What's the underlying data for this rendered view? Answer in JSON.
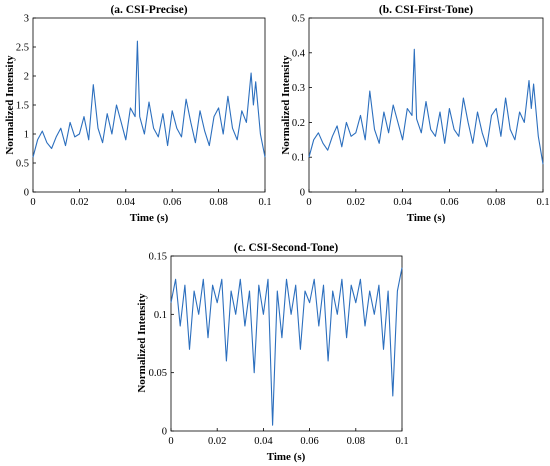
{
  "chart_data": [
    {
      "type": "line",
      "title": "(a. CSI-Precise)",
      "xlabel": "Time (s)",
      "ylabel": "Normalized Intensity",
      "xlim": [
        0,
        0.1
      ],
      "ylim": [
        0,
        3
      ],
      "xticks": [
        "0",
        "0.02",
        "0.04",
        "0.06",
        "0.08",
        "0.1"
      ],
      "yticks": [
        "0",
        "0.5",
        "1",
        "1.5",
        "2",
        "2.5",
        "3"
      ],
      "color": "#2c6fbe",
      "series": [
        {
          "x": [
            0,
            0.002,
            0.004,
            0.006,
            0.008,
            0.01,
            0.012,
            0.014,
            0.016,
            0.018,
            0.02,
            0.022,
            0.024,
            0.026,
            0.028,
            0.03,
            0.032,
            0.034,
            0.036,
            0.038,
            0.04,
            0.042,
            0.044,
            0.045,
            0.046,
            0.048,
            0.05,
            0.052,
            0.054,
            0.056,
            0.058,
            0.06,
            0.062,
            0.064,
            0.066,
            0.068,
            0.07,
            0.072,
            0.074,
            0.076,
            0.078,
            0.08,
            0.082,
            0.084,
            0.086,
            0.088,
            0.09,
            0.092,
            0.094,
            0.095,
            0.096,
            0.098,
            0.1
          ],
          "values": [
            0.6,
            0.9,
            1.05,
            0.85,
            0.75,
            0.95,
            1.1,
            0.8,
            1.2,
            0.95,
            1.0,
            1.3,
            0.9,
            1.85,
            1.1,
            0.85,
            1.35,
            1.0,
            1.5,
            1.2,
            0.9,
            1.45,
            1.3,
            2.6,
            1.3,
            1.0,
            1.55,
            1.1,
            0.95,
            1.35,
            0.8,
            1.4,
            1.1,
            0.95,
            1.6,
            1.2,
            0.85,
            1.4,
            1.05,
            0.8,
            1.3,
            1.45,
            1.0,
            1.65,
            1.1,
            0.9,
            1.4,
            1.2,
            2.05,
            1.5,
            1.9,
            1.0,
            0.6
          ]
        }
      ]
    },
    {
      "type": "line",
      "title": "(b. CSI-First-Tone)",
      "xlabel": "Time (s)",
      "ylabel": "Normalized Intensity",
      "xlim": [
        0,
        0.1
      ],
      "ylim": [
        0,
        0.5
      ],
      "xticks": [
        "0",
        "0.02",
        "0.04",
        "0.06",
        "0.08",
        "0.1"
      ],
      "yticks": [
        "0",
        "0.1",
        "0.2",
        "0.3",
        "0.4",
        "0.5"
      ],
      "color": "#2c6fbe",
      "series": [
        {
          "x": [
            0,
            0.002,
            0.004,
            0.006,
            0.008,
            0.01,
            0.012,
            0.014,
            0.016,
            0.018,
            0.02,
            0.022,
            0.024,
            0.026,
            0.028,
            0.03,
            0.032,
            0.034,
            0.036,
            0.038,
            0.04,
            0.042,
            0.044,
            0.045,
            0.046,
            0.048,
            0.05,
            0.052,
            0.054,
            0.056,
            0.058,
            0.06,
            0.062,
            0.064,
            0.066,
            0.068,
            0.07,
            0.072,
            0.074,
            0.076,
            0.078,
            0.08,
            0.082,
            0.084,
            0.086,
            0.088,
            0.09,
            0.092,
            0.094,
            0.095,
            0.096,
            0.098,
            0.1
          ],
          "values": [
            0.1,
            0.15,
            0.17,
            0.14,
            0.12,
            0.16,
            0.19,
            0.13,
            0.2,
            0.16,
            0.17,
            0.22,
            0.15,
            0.29,
            0.18,
            0.14,
            0.23,
            0.17,
            0.25,
            0.2,
            0.15,
            0.24,
            0.22,
            0.41,
            0.21,
            0.17,
            0.26,
            0.18,
            0.16,
            0.23,
            0.14,
            0.24,
            0.18,
            0.16,
            0.27,
            0.2,
            0.14,
            0.23,
            0.17,
            0.13,
            0.22,
            0.24,
            0.16,
            0.27,
            0.18,
            0.15,
            0.23,
            0.2,
            0.32,
            0.24,
            0.31,
            0.16,
            0.08
          ]
        }
      ]
    },
    {
      "type": "line",
      "title": "(c. CSI-Second-Tone)",
      "xlabel": "Time (s)",
      "ylabel": "Normalized Intensity",
      "xlim": [
        0,
        0.1
      ],
      "ylim": [
        0,
        0.15
      ],
      "xticks": [
        "0",
        "0.02",
        "0.04",
        "0.06",
        "0.08",
        "0.1"
      ],
      "yticks": [
        "0",
        "0.05",
        "0.1",
        "0.15"
      ],
      "color": "#2c6fbe",
      "series": [
        {
          "x": [
            0,
            0.002,
            0.004,
            0.006,
            0.008,
            0.01,
            0.012,
            0.014,
            0.016,
            0.018,
            0.02,
            0.022,
            0.024,
            0.026,
            0.028,
            0.03,
            0.032,
            0.034,
            0.036,
            0.038,
            0.04,
            0.042,
            0.044,
            0.046,
            0.048,
            0.05,
            0.052,
            0.054,
            0.056,
            0.058,
            0.06,
            0.062,
            0.064,
            0.066,
            0.068,
            0.07,
            0.072,
            0.074,
            0.076,
            0.078,
            0.08,
            0.082,
            0.084,
            0.086,
            0.088,
            0.09,
            0.092,
            0.094,
            0.096,
            0.098,
            0.1
          ],
          "values": [
            0.11,
            0.13,
            0.09,
            0.125,
            0.07,
            0.12,
            0.1,
            0.13,
            0.08,
            0.125,
            0.11,
            0.13,
            0.06,
            0.12,
            0.1,
            0.13,
            0.09,
            0.12,
            0.05,
            0.125,
            0.1,
            0.13,
            0.005,
            0.12,
            0.08,
            0.13,
            0.1,
            0.125,
            0.07,
            0.12,
            0.11,
            0.13,
            0.09,
            0.125,
            0.06,
            0.12,
            0.1,
            0.13,
            0.08,
            0.125,
            0.11,
            0.13,
            0.09,
            0.12,
            0.1,
            0.125,
            0.07,
            0.12,
            0.03,
            0.12,
            0.14
          ]
        }
      ]
    }
  ]
}
